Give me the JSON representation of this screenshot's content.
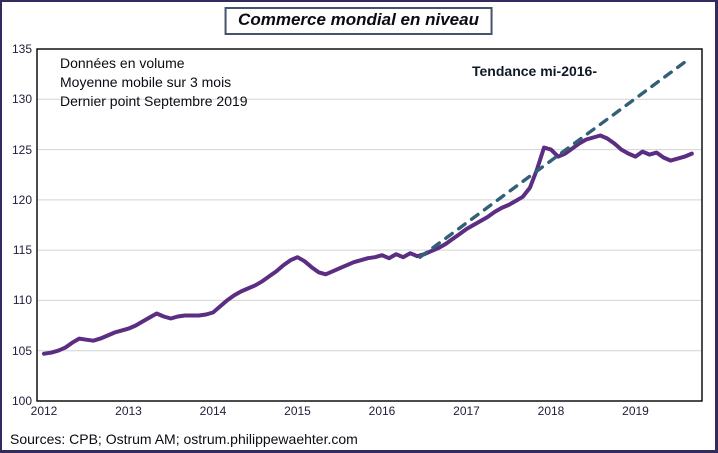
{
  "title": {
    "text": "Commerce mondial en niveau"
  },
  "annotations": {
    "notes": [
      "Données en volume",
      "Moyenne mobile sur 3 mois",
      "Dernier point Septembre 2019"
    ],
    "trend_label": "Tendance mi-2016-"
  },
  "source": "Sources: CPB; Ostrum AM; ostrum.philippewaehter.com",
  "colors": {
    "frame_border": "#322B60",
    "title_border": "#44546A",
    "series_line": "#5B2D83",
    "trend_line": "#336077",
    "gridline": "#D3D3D3",
    "plot_border": "#000000"
  },
  "chart_data": {
    "type": "line",
    "title": "Commerce mondial en niveau",
    "xlabel": "",
    "ylabel": "",
    "ylim": [
      100,
      135
    ],
    "yticks": [
      100,
      105,
      110,
      115,
      120,
      125,
      130,
      135
    ],
    "xticks": [
      2012,
      2013,
      2014,
      2015,
      2016,
      2017,
      2018,
      2019
    ],
    "xlim": [
      2011.92,
      2019.8
    ],
    "grid": "horizontal",
    "legend": "none",
    "series": [
      {
        "name": "Commerce mondial, volume, moyenne mobile 3 mois",
        "color": "#5B2D83",
        "x_start": 2012.0,
        "x_step_months": 1,
        "last_point": "Septembre 2019",
        "values": [
          104.7,
          104.8,
          105.0,
          105.3,
          105.8,
          106.2,
          106.1,
          106.0,
          106.2,
          106.5,
          106.8,
          107.0,
          107.2,
          107.5,
          107.9,
          108.3,
          108.7,
          108.4,
          108.2,
          108.4,
          108.5,
          108.5,
          108.5,
          108.6,
          108.8,
          109.4,
          110.0,
          110.5,
          110.9,
          111.2,
          111.5,
          111.9,
          112.4,
          112.9,
          113.5,
          114.0,
          114.3,
          113.9,
          113.3,
          112.8,
          112.6,
          112.9,
          113.2,
          113.5,
          113.8,
          114.0,
          114.2,
          114.3,
          114.5,
          114.2,
          114.6,
          114.3,
          114.7,
          114.4,
          114.6,
          114.9,
          115.2,
          115.6,
          116.1,
          116.6,
          117.1,
          117.5,
          117.9,
          118.3,
          118.8,
          119.2,
          119.5,
          119.9,
          120.3,
          121.2,
          123.0,
          125.2,
          125.0,
          124.3,
          124.6,
          125.1,
          125.6,
          126.0,
          126.2,
          126.4,
          126.1,
          125.6,
          125.0,
          124.6,
          124.3,
          124.8,
          124.5,
          124.7,
          124.2,
          123.9,
          124.1,
          124.3,
          124.6
        ]
      },
      {
        "name": "Tendance mi-2016-",
        "color": "#336077",
        "style": "dashed",
        "x": [
          2016.45,
          2019.6
        ],
        "y": [
          114.3,
          133.8
        ]
      }
    ]
  }
}
